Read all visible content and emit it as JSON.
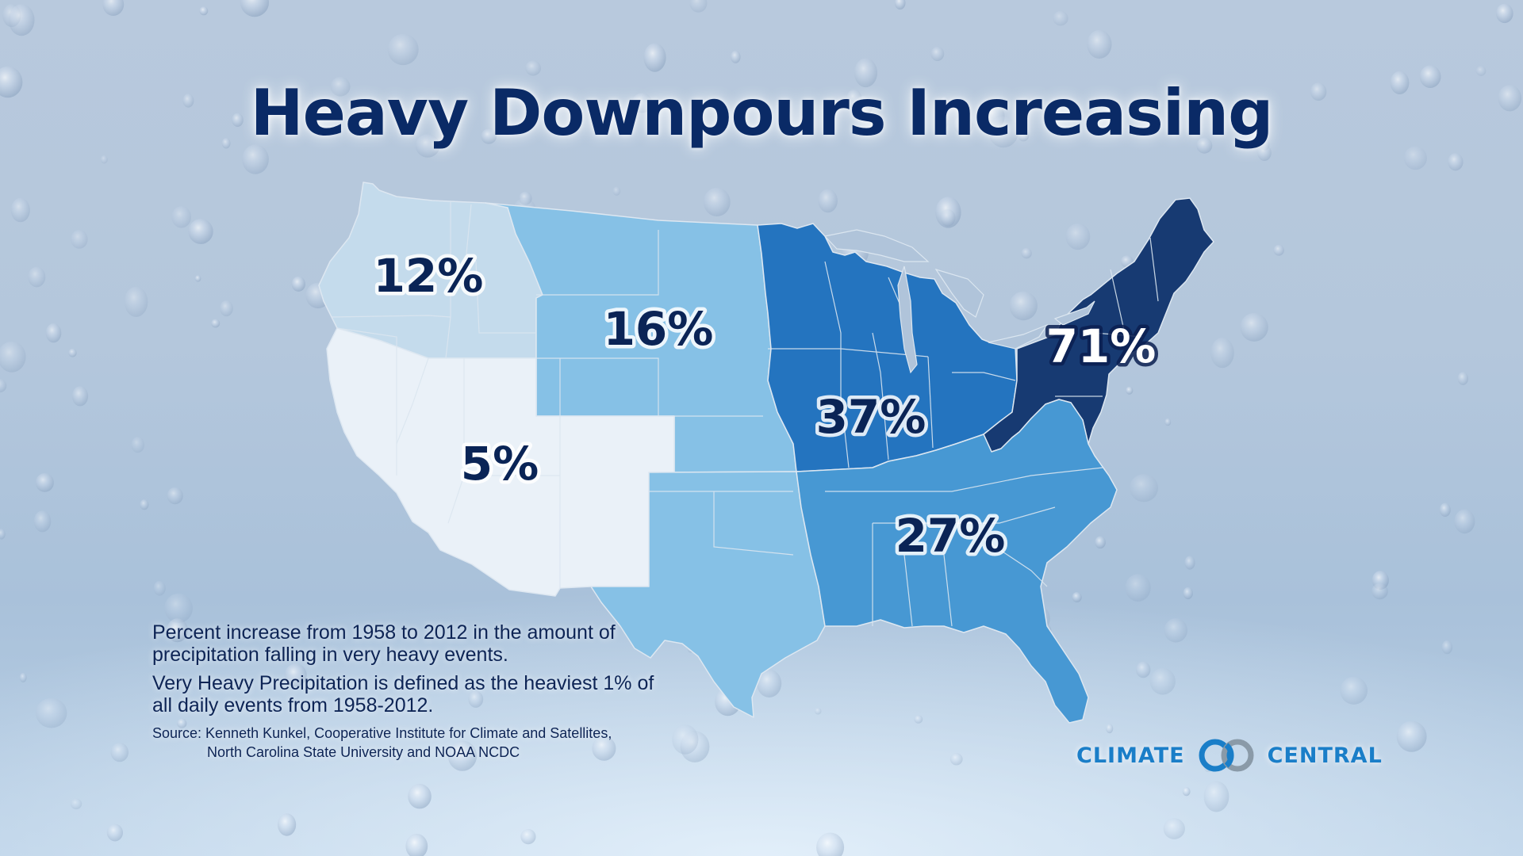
{
  "title": "Heavy Downpours Increasing",
  "regions": [
    {
      "name": "Northwest",
      "label": "12%",
      "value": 12,
      "color": "#c4dbec"
    },
    {
      "name": "Great Plains North",
      "label": "16%",
      "value": 16,
      "color": "#86c1e6"
    },
    {
      "name": "Southwest",
      "label": "5%",
      "value": 5,
      "color": "#eaf1f8"
    },
    {
      "name": "Midwest",
      "label": "37%",
      "value": 37,
      "color": "#2474bf"
    },
    {
      "name": "Northeast",
      "label": "71%",
      "value": 71,
      "color": "#173a72"
    },
    {
      "name": "Southeast",
      "label": "27%",
      "value": 27,
      "color": "#4798d3"
    },
    {
      "name": "Great Plains South",
      "label": "",
      "value": 16,
      "color": "#86c1e6"
    }
  ],
  "notes": {
    "line1": "Percent increase from 1958 to 2012 in the amount of precipitation falling in very heavy events.",
    "line2": "Very Heavy Precipitation is defined as the heaviest 1% of all daily events from 1958-2012.",
    "source_line1": "Source: Kenneth Kunkel, Cooperative Institute for Climate and Satellites,",
    "source_line2": "North Carolina State University and NOAA NCDC"
  },
  "logo": {
    "left_text": "CLIMATE",
    "right_text": "CENTRAL",
    "color": "#1a7ec8",
    "icon": "interlocking-rings-icon"
  },
  "colors": {
    "title": "#0a2a66",
    "text": "#0d2455",
    "state_border": "#d8e4ef"
  }
}
